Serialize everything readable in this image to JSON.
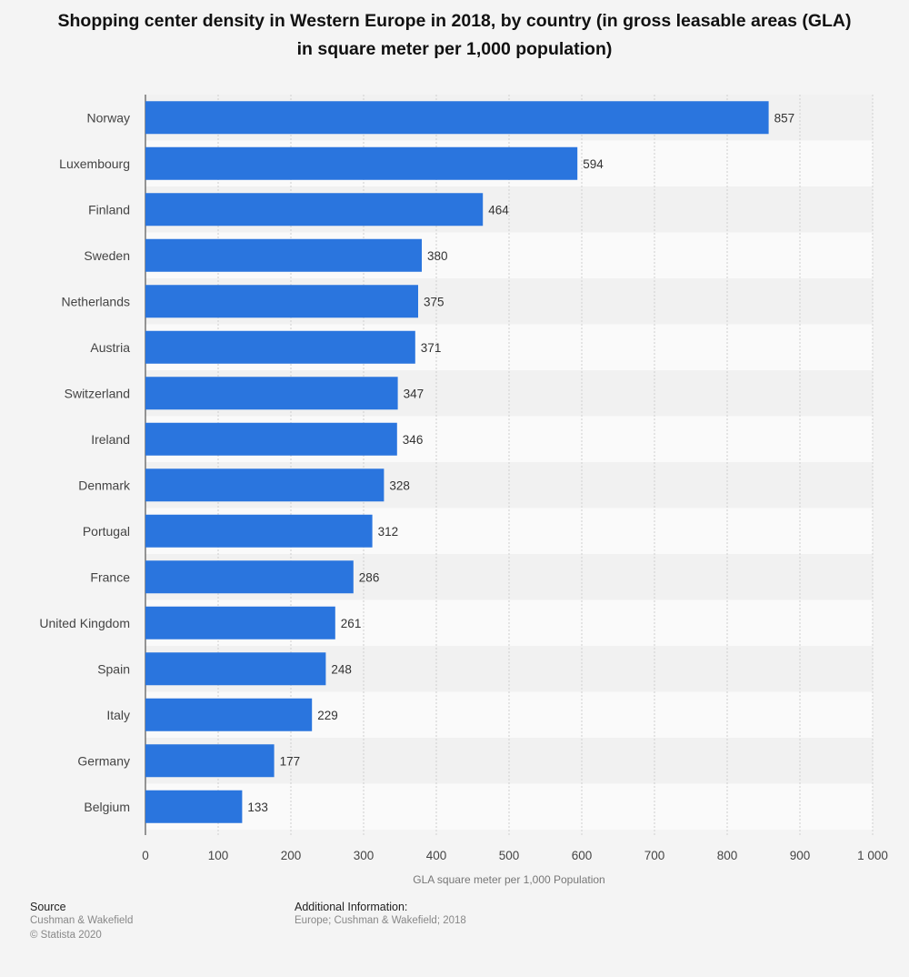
{
  "title": "Shopping center density in Western Europe in 2018, by country (in gross leasable areas (GLA) in square meter per 1,000 population)",
  "colors": {
    "bar": "#2a75de",
    "band_light": "#fafafa",
    "band_dark": "#f1f1f1",
    "grid": "#cfcfcf",
    "text": "#444444"
  },
  "chart_data": {
    "type": "bar",
    "orientation": "horizontal",
    "categories": [
      "Norway",
      "Luxembourg",
      "Finland",
      "Sweden",
      "Netherlands",
      "Austria",
      "Switzerland",
      "Ireland",
      "Denmark",
      "Portugal",
      "France",
      "United Kingdom",
      "Spain",
      "Italy",
      "Germany",
      "Belgium"
    ],
    "values": [
      857,
      594,
      464,
      380,
      375,
      371,
      347,
      346,
      328,
      312,
      286,
      261,
      248,
      229,
      177,
      133
    ],
    "xlabel": "GLA square meter per 1,000 Population",
    "xlim": [
      0,
      1000
    ],
    "xticks": [
      0,
      100,
      200,
      300,
      400,
      500,
      600,
      700,
      800,
      900,
      1000
    ],
    "xtick_labels": [
      "0",
      "100",
      "200",
      "300",
      "400",
      "500",
      "600",
      "700",
      "800",
      "900",
      "1 000"
    ],
    "grid": true,
    "data_labels": true
  },
  "footer": {
    "source_heading": "Source",
    "source_lines": [
      "Cushman & Wakefield",
      "© Statista 2020"
    ],
    "info_heading": "Additional Information:",
    "info_text": "Europe; Cushman & Wakefield; 2018"
  }
}
